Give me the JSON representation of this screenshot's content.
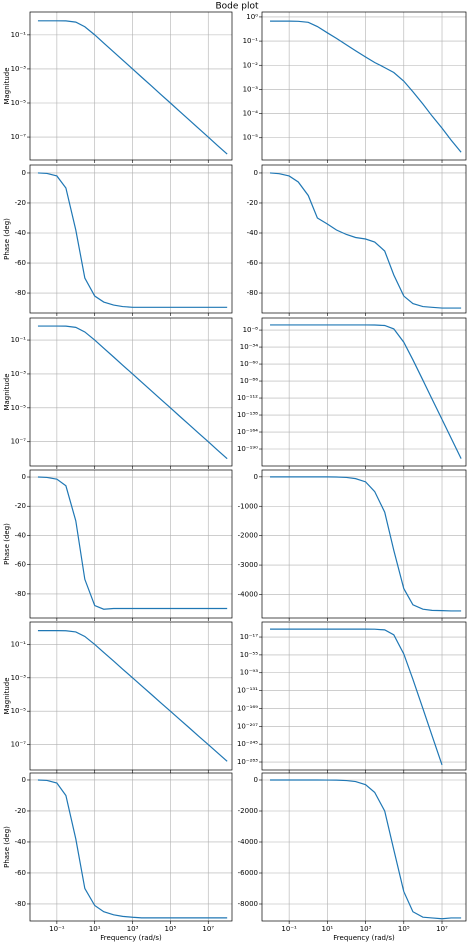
{
  "title": "Bode plot",
  "chart_data": [
    {
      "type": "line",
      "xlog": true,
      "ylog": true,
      "grid": true,
      "ylabel": "Magnitude",
      "color": "#1f77b4",
      "x": [
        0.01,
        0.03,
        0.1,
        0.3,
        1,
        3,
        10,
        30,
        100,
        300,
        1000,
        3000,
        10000,
        30000,
        100000,
        300000,
        1000000,
        3000000,
        10000000,
        30000000,
        100000000
      ],
      "values": [
        0.67,
        0.67,
        0.67,
        0.66,
        0.56,
        0.3,
        0.1,
        0.033,
        0.01,
        0.0033,
        0.001,
        0.00033,
        0.0001,
        3.3e-05,
        1e-05,
        3.3e-06,
        1e-06,
        3.3e-07,
        1e-07,
        3.3e-08,
        1e-08
      ],
      "xlim": [
        0.0038,
        180000000
      ],
      "xticks": [
        0.1,
        10,
        1000,
        100000,
        10000000
      ],
      "ylim": [
        4.5e-09,
        2.2
      ],
      "yticks": [
        {
          "value": 0.1,
          "label": "10⁻¹"
        },
        {
          "value": 0.001,
          "label": "10⁻³"
        },
        {
          "value": 1e-05,
          "label": "10⁻⁵"
        },
        {
          "value": 1e-07,
          "label": "10⁻⁷"
        }
      ]
    },
    {
      "type": "line",
      "xlog": true,
      "ylog": true,
      "grid": true,
      "color": "#1f77b4",
      "x": [
        0.01,
        0.03,
        0.1,
        0.3,
        1,
        3,
        10,
        30,
        100,
        300,
        1000,
        3000,
        10000,
        30000,
        100000,
        300000,
        1000000,
        3000000,
        10000000,
        30000000,
        100000000
      ],
      "values": [
        0.67,
        0.67,
        0.67,
        0.66,
        0.6,
        0.4,
        0.22,
        0.13,
        0.07,
        0.04,
        0.022,
        0.013,
        0.008,
        0.005,
        0.0022,
        0.0008,
        0.00025,
        8e-05,
        2.5e-05,
        8e-06,
        2.5e-06
      ],
      "xlim": [
        0.0038,
        180000000
      ],
      "xticks": [
        0.1,
        10,
        1000,
        100000,
        10000000
      ],
      "ylim": [
        1.2e-06,
        1.6
      ],
      "yticks": [
        {
          "value": 1,
          "label": "10⁰"
        },
        {
          "value": 0.1,
          "label": "10⁻¹"
        },
        {
          "value": 0.01,
          "label": "10⁻²"
        },
        {
          "value": 0.001,
          "label": "10⁻³"
        },
        {
          "value": 0.0001,
          "label": "10⁻⁴"
        },
        {
          "value": 1e-05,
          "label": "10⁻⁵"
        }
      ]
    },
    {
      "type": "line",
      "xlog": true,
      "ylog": false,
      "grid": true,
      "ylabel": "Phase (deg)",
      "color": "#1f77b4",
      "x": [
        0.01,
        0.03,
        0.1,
        0.3,
        1,
        3,
        10,
        30,
        100,
        300,
        1000,
        3000,
        10000,
        30000,
        100000,
        300000,
        1000000,
        3000000,
        10000000,
        30000000,
        100000000
      ],
      "values": [
        0,
        -0.3,
        -2,
        -10,
        -38,
        -70,
        -82,
        -86,
        -88,
        -89,
        -89.5,
        -89.5,
        -89.5,
        -89.5,
        -89.5,
        -89.5,
        -89.5,
        -89.5,
        -89.5,
        -89.5,
        -89.5
      ],
      "xlim": [
        0.0038,
        180000000
      ],
      "xticks": [
        0.1,
        10,
        1000,
        100000,
        10000000
      ],
      "ylim": [
        -93.3,
        5.3
      ],
      "yticks": [
        0,
        -20,
        -40,
        -60,
        -80
      ]
    },
    {
      "type": "line",
      "xlog": true,
      "ylog": false,
      "grid": true,
      "color": "#1f77b4",
      "x": [
        0.01,
        0.03,
        0.1,
        0.3,
        1,
        3,
        10,
        30,
        100,
        300,
        1000,
        3000,
        10000,
        30000,
        100000,
        300000,
        1000000,
        3000000,
        10000000,
        30000000,
        100000000
      ],
      "values": [
        0,
        -0.5,
        -2,
        -6,
        -15,
        -30,
        -34,
        -38,
        -41,
        -43,
        -44,
        -46,
        -52,
        -68,
        -82,
        -87,
        -89,
        -89.5,
        -90,
        -90,
        -90
      ],
      "xlim": [
        0.0038,
        180000000
      ],
      "xticks": [
        0.1,
        10,
        1000,
        100000,
        10000000
      ],
      "ylim": [
        -93.3,
        5.3
      ],
      "yticks": [
        0,
        -20,
        -40,
        -60,
        -80
      ]
    },
    {
      "type": "line",
      "xlog": true,
      "ylog": true,
      "grid": true,
      "ylabel": "Magnitude",
      "color": "#1f77b4",
      "x": [
        0.01,
        0.03,
        0.1,
        0.3,
        1,
        3,
        10,
        30,
        100,
        300,
        1000,
        3000,
        10000,
        30000,
        100000,
        300000,
        1000000,
        3000000,
        10000000,
        30000000,
        100000000
      ],
      "values": [
        0.67,
        0.67,
        0.67,
        0.66,
        0.56,
        0.3,
        0.1,
        0.033,
        0.01,
        0.0033,
        0.001,
        0.00033,
        0.0001,
        3.3e-05,
        1e-05,
        3.3e-06,
        1e-06,
        3.3e-07,
        1e-07,
        3.3e-08,
        1e-08
      ],
      "xlim": [
        0.0038,
        180000000
      ],
      "xticks": [
        0.1,
        10,
        1000,
        100000,
        10000000
      ],
      "ylim": [
        3.7e-09,
        2.0
      ],
      "yticks": [
        {
          "value": 0.1,
          "label": "10⁻¹"
        },
        {
          "value": 0.001,
          "label": "10⁻³"
        },
        {
          "value": 1e-05,
          "label": "10⁻⁵"
        },
        {
          "value": 1e-07,
          "label": "10⁻⁷"
        }
      ]
    },
    {
      "type": "line",
      "xlog": true,
      "ylog": true,
      "grid": true,
      "color": "#1f77b4",
      "x": [
        0.01,
        0.03,
        0.1,
        0.3,
        1,
        3,
        10,
        30,
        100,
        300,
        1000,
        3000,
        10000,
        30000,
        100000,
        300000,
        1000000,
        3000000,
        10000000,
        30000000,
        100000000
      ],
      "values": [
        0.67,
        0.67,
        0.67,
        0.67,
        0.67,
        0.67,
        0.67,
        0.67,
        0.67,
        0.67,
        0.66,
        0.56,
        0.1,
        6.3e-07,
        2.5e-27,
        3.2e-54,
        2e-85,
        4e-114,
        2e-145,
        4e-174,
        2e-205
      ],
      "xlim": [
        0.0038,
        180000000
      ],
      "xticks": [
        0.1,
        10,
        1000,
        100000,
        10000000
      ],
      "ylim": [
        1e-216,
        30000000000.0
      ],
      "yticks": [
        {
          "value": 1e-08,
          "label": "10⁻⁸"
        },
        {
          "value": 1e-34,
          "label": "10⁻³⁴"
        },
        {
          "value": 1e-60,
          "label": "10⁻⁶⁰"
        },
        {
          "value": 1e-86,
          "label": "10⁻⁸⁶"
        },
        {
          "value": 1e-112,
          "label": "10⁻¹¹²"
        },
        {
          "value": 1e-138,
          "label": "10⁻¹³⁸"
        },
        {
          "value": 1e-164,
          "label": "10⁻¹⁶⁴"
        },
        {
          "value": 1e-190,
          "label": "10⁻¹⁹⁰"
        }
      ]
    },
    {
      "type": "line",
      "xlog": true,
      "ylog": false,
      "grid": true,
      "ylabel": "Phase (deg)",
      "color": "#1f77b4",
      "x": [
        0.01,
        0.03,
        0.1,
        0.3,
        1,
        3,
        10,
        30,
        100,
        300,
        1000,
        3000,
        10000,
        30000,
        100000,
        300000,
        1000000,
        3000000,
        10000000,
        30000000,
        100000000
      ],
      "values": [
        0,
        -0.3,
        -1.5,
        -6,
        -30,
        -70,
        -88,
        -90.5,
        -90,
        -90,
        -90,
        -90,
        -90,
        -90,
        -90,
        -90,
        -90,
        -90,
        -90,
        -90,
        -90
      ],
      "xlim": [
        0.0038,
        180000000
      ],
      "xticks": [
        0.1,
        10,
        1000,
        100000,
        10000000
      ],
      "ylim": [
        -96.5,
        4.8
      ],
      "yticks": [
        0,
        -20,
        -40,
        -60,
        -80
      ]
    },
    {
      "type": "line",
      "xlog": true,
      "ylog": false,
      "grid": true,
      "color": "#1f77b4",
      "x": [
        0.01,
        0.03,
        0.1,
        0.3,
        1,
        3,
        10,
        30,
        100,
        300,
        1000,
        3000,
        10000,
        30000,
        100000,
        300000,
        1000000,
        3000000,
        10000000,
        30000000,
        100000000
      ],
      "values": [
        0,
        0,
        0,
        0,
        0,
        -0.6,
        -2,
        -6,
        -20,
        -60,
        -170,
        -500,
        -1200,
        -2500,
        -3800,
        -4350,
        -4500,
        -4540,
        -4550,
        -4560,
        -4560
      ],
      "xlim": [
        0.0038,
        180000000
      ],
      "xticks": [
        0.1,
        10,
        1000,
        100000,
        10000000
      ],
      "ylim": [
        -4800,
        233
      ],
      "yticks": [
        0,
        -1000,
        -2000,
        -3000,
        -4000
      ]
    },
    {
      "type": "line",
      "xlog": true,
      "ylog": true,
      "grid": true,
      "ylabel": "Magnitude",
      "color": "#1f77b4",
      "x": [
        0.01,
        0.03,
        0.1,
        0.3,
        1,
        3,
        10,
        30,
        100,
        300,
        1000,
        3000,
        10000,
        30000,
        100000,
        300000,
        1000000,
        3000000,
        10000000,
        30000000,
        100000000
      ],
      "values": [
        0.67,
        0.67,
        0.67,
        0.66,
        0.56,
        0.3,
        0.1,
        0.033,
        0.01,
        0.0033,
        0.001,
        0.00033,
        0.0001,
        3.3e-05,
        1e-05,
        3.3e-06,
        1e-06,
        3.3e-07,
        1e-07,
        3.3e-08,
        1e-08
      ],
      "xlim": [
        0.0038,
        180000000
      ],
      "xticks": [
        0.1,
        10,
        1000,
        100000,
        10000000
      ],
      "ylim": [
        3e-09,
        2.2
      ],
      "yticks": [
        {
          "value": 0.1,
          "label": "10⁻¹"
        },
        {
          "value": 0.001,
          "label": "10⁻³"
        },
        {
          "value": 1e-05,
          "label": "10⁻⁵"
        },
        {
          "value": 1e-07,
          "label": "10⁻⁷"
        }
      ]
    },
    {
      "type": "line",
      "xlog": true,
      "ylog": true,
      "grid": true,
      "color": "#1f77b4",
      "x": [
        0.01,
        0.03,
        0.1,
        0.3,
        1,
        3,
        10,
        30,
        100,
        300,
        1000,
        3000,
        10000,
        30000,
        100000,
        300000,
        1000000,
        3000000,
        10000000,
        30000000,
        100000000
      ],
      "values": [
        0.67,
        0.67,
        0.67,
        0.67,
        0.67,
        0.67,
        0.67,
        0.67,
        0.67,
        0.67,
        0.645,
        0.48,
        0.015,
        5e-13,
        1e-53,
        1.3e-107,
        6e-170,
        2.5e-227,
        6e-290,
        null,
        null
      ],
      "xlim": [
        0.0038,
        180000000
      ],
      "xticks": [
        0.1,
        10,
        1000,
        100000,
        10000000
      ],
      "ylim": [
        1e-300,
        1000000000000000.0
      ],
      "yticks": [
        {
          "value": 1e-17,
          "label": "10⁻¹⁷"
        },
        {
          "value": 1e-55,
          "label": "10⁻⁵⁵"
        },
        {
          "value": 1e-93,
          "label": "10⁻⁹³"
        },
        {
          "value": 1e-131,
          "label": "10⁻¹³¹"
        },
        {
          "value": 1e-169,
          "label": "10⁻¹⁶⁹"
        },
        {
          "value": 1e-207,
          "label": "10⁻²⁰⁷"
        },
        {
          "value": 1e-245,
          "label": "10⁻²⁴⁵"
        },
        {
          "value": 1e-283,
          "label": "10⁻²⁸³"
        }
      ]
    },
    {
      "type": "line",
      "xlog": true,
      "ylog": false,
      "grid": true,
      "ylabel": "Phase (deg)",
      "xlabel": "Frequency (rad/s)",
      "color": "#1f77b4",
      "x": [
        0.01,
        0.03,
        0.1,
        0.3,
        1,
        3,
        10,
        30,
        100,
        300,
        1000,
        3000,
        10000,
        30000,
        100000,
        300000,
        1000000,
        3000000,
        10000000,
        30000000,
        100000000
      ],
      "values": [
        0,
        -0.3,
        -2,
        -10,
        -38,
        -70,
        -81,
        -85,
        -87,
        -88,
        -88.6,
        -89,
        -89,
        -89,
        -89,
        -89,
        -89,
        -89,
        -89,
        -89,
        -89
      ],
      "xlim": [
        0.0038,
        180000000
      ],
      "xticks": [
        {
          "value": 0.1,
          "label": "10⁻¹"
        },
        {
          "value": 10,
          "label": "10¹"
        },
        {
          "value": 1000,
          "label": "10³"
        },
        {
          "value": 100000,
          "label": "10⁵"
        },
        {
          "value": 10000000,
          "label": "10⁷"
        }
      ],
      "ylim": [
        -91,
        4.5
      ],
      "yticks": [
        0,
        -20,
        -40,
        -60,
        -80
      ]
    },
    {
      "type": "line",
      "xlog": true,
      "ylog": false,
      "grid": true,
      "xlabel": "Frequency (rad/s)",
      "color": "#1f77b4",
      "x": [
        0.01,
        0.03,
        0.1,
        0.3,
        1,
        3,
        10,
        30,
        100,
        300,
        1000,
        3000,
        10000,
        30000,
        100000,
        300000,
        1000000,
        3000000,
        10000000,
        30000000,
        100000000
      ],
      "values": [
        0,
        0,
        0,
        0,
        0,
        -1,
        -3,
        -10,
        -35,
        -100,
        -300,
        -800,
        -2000,
        -4500,
        -7200,
        -8500,
        -8850,
        -8900,
        -8950,
        -8900,
        -8900
      ],
      "xlim": [
        0.0038,
        180000000
      ],
      "xticks": [
        {
          "value": 0.1,
          "label": "10⁻¹"
        },
        {
          "value": 10,
          "label": "10¹"
        },
        {
          "value": 1000,
          "label": "10³"
        },
        {
          "value": 100000,
          "label": "10⁵"
        },
        {
          "value": 10000000,
          "label": "10⁷"
        }
      ],
      "ylim": [
        -9097,
        452
      ],
      "yticks": [
        0,
        -2000,
        -4000,
        -6000,
        -8000
      ]
    }
  ]
}
